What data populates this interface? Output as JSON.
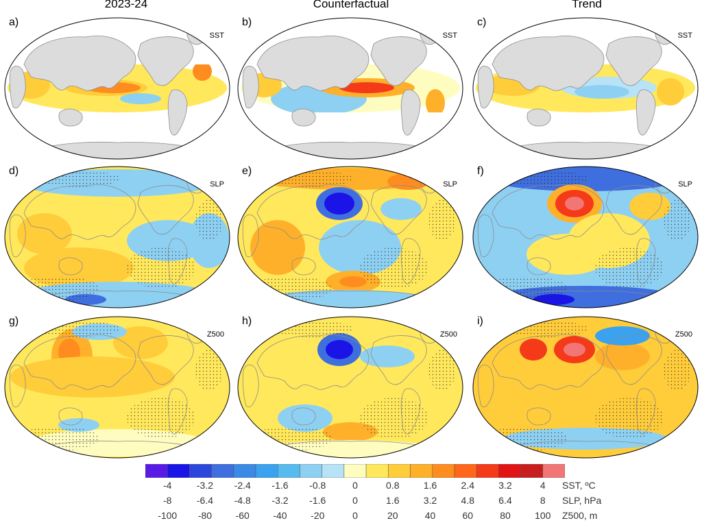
{
  "columns": [
    "2023-24",
    "Counterfactual",
    "Trend"
  ],
  "panels": [
    {
      "label": "a)",
      "variable": "SST"
    },
    {
      "label": "b)",
      "variable": "SST"
    },
    {
      "label": "c)",
      "variable": "SST"
    },
    {
      "label": "d)",
      "variable": "SLP"
    },
    {
      "label": "e)",
      "variable": "SLP"
    },
    {
      "label": "f)",
      "variable": "SLP"
    },
    {
      "label": "g)",
      "variable": "Z500"
    },
    {
      "label": "h)",
      "variable": "Z500"
    },
    {
      "label": "i)",
      "variable": "Z500"
    }
  ],
  "colorbar": {
    "colors": [
      "#5a1ae6",
      "#1a14e6",
      "#2d46dc",
      "#3f6ede",
      "#3a8ae6",
      "#3aa2ee",
      "#56bcf0",
      "#8ed0f2",
      "#b8e2f6",
      "#fffcc0",
      "#ffe85c",
      "#ffcc3a",
      "#ffb02a",
      "#ff8c1e",
      "#ff661a",
      "#f53a1a",
      "#e01414",
      "#c81e1e",
      "#f27676"
    ],
    "scales": [
      {
        "unit": "SST, ºC",
        "ticks": [
          "-4",
          "-3.2",
          "-2.4",
          "-1.6",
          "-0.8",
          "0",
          "0.8",
          "1.6",
          "2.4",
          "3.2",
          "4"
        ]
      },
      {
        "unit": "SLP, hPa",
        "ticks": [
          "-8",
          "-6.4",
          "-4.8",
          "-3.2",
          "-1.6",
          "0",
          "1.6",
          "3.2",
          "4.8",
          "6.4",
          "8"
        ]
      },
      {
        "unit": "Z500, m",
        "ticks": [
          "-100",
          "-80",
          "-60",
          "-40",
          "-20",
          "0",
          "20",
          "40",
          "60",
          "80",
          "100"
        ]
      }
    ]
  },
  "map_colors": {
    "land": "#dcdcdc",
    "coast": "#8c8c8c",
    "ocean_blank": "#ffffff"
  }
}
